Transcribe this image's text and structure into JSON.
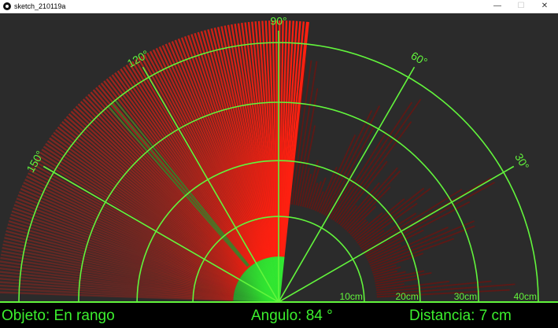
{
  "window": {
    "title": "sketch_210119a",
    "controls": {
      "minimize": "—",
      "maximize": "☐",
      "close": "✕"
    }
  },
  "radar": {
    "angle_labels": [
      "30°",
      "60°",
      "90°",
      "120°",
      "150°"
    ],
    "range_labels": [
      "10cm",
      "20cm",
      "30cm",
      "40cm"
    ],
    "current_angle_deg": 84,
    "detected_distance_cm": 7,
    "max_range_cm": 40
  },
  "status": {
    "object_text": "Objeto: En rango",
    "angle_text": "Angulo: 84 °",
    "distance_text": "Distancia: 7 cm"
  },
  "colors": {
    "background": "#2b2b2b",
    "grid": "#62f53c",
    "sweep": "#ff2010",
    "trace_green": "#32e632",
    "status_bar": "#000000",
    "status_text": "#3cf02e"
  }
}
